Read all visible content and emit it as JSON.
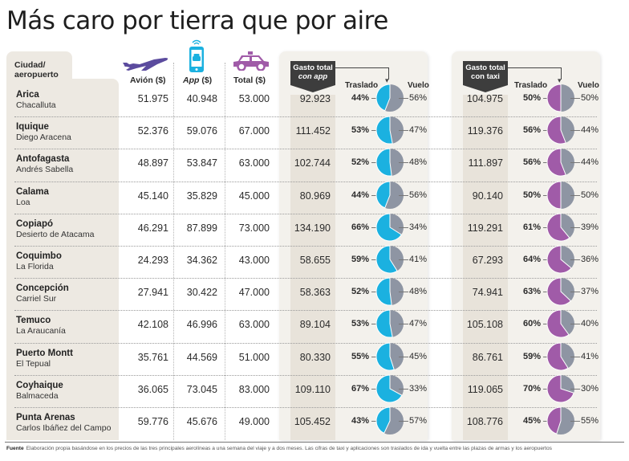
{
  "title": "Más caro por tierra que por aire",
  "headers": {
    "city": "Ciudad/",
    "city2": "aeropuerto",
    "avion": "Avión ($)",
    "app_italic": "App",
    "app_rest": " ($)",
    "total": "Total ($)",
    "gasto_app_1": "Gasto total",
    "gasto_app_2": "con app",
    "gasto_taxi_1": "Gasto total",
    "gasto_taxi_2": "con taxi",
    "traslado": "Traslado",
    "vuelo": "Vuelo"
  },
  "icons": {
    "avion": "airplane-icon",
    "app": "smartphone-car-icon",
    "total": "taxi-icon"
  },
  "colors": {
    "app_pie": "#1bb1e0",
    "taxi_pie": "#a05ba8",
    "vuelo_pie": "#8e95a3",
    "plane": "#5b4b9e",
    "taxi_icon": "#a05ba8",
    "phone": "#1bb1e0"
  },
  "chart_data": {
    "type": "table",
    "title": "Más caro por tierra que por aire",
    "columns": [
      "Ciudad",
      "Aeropuerto",
      "Avión ($)",
      "App ($)",
      "Total ($)",
      "Gasto total con app",
      "Traslado app %",
      "Vuelo app %",
      "Gasto total con taxi",
      "Traslado taxi %",
      "Vuelo taxi %"
    ],
    "rows": [
      {
        "city": "Arica",
        "airport": "Chacalluta",
        "avion": "51.975",
        "app": "40.948",
        "total": "53.000",
        "gasto_app": "92.923",
        "app_traslado": 44,
        "app_vuelo": 56,
        "gasto_taxi": "104.975",
        "taxi_traslado": 50,
        "taxi_vuelo": 50
      },
      {
        "city": "Iquique",
        "airport": "Diego Aracena",
        "avion": "52.376",
        "app": "59.076",
        "total": "67.000",
        "gasto_app": "111.452",
        "app_traslado": 53,
        "app_vuelo": 47,
        "gasto_taxi": "119.376",
        "taxi_traslado": 56,
        "taxi_vuelo": 44
      },
      {
        "city": "Antofagasta",
        "airport": "Andrés Sabella",
        "avion": "48.897",
        "app": "53.847",
        "total": "63.000",
        "gasto_app": "102.744",
        "app_traslado": 52,
        "app_vuelo": 48,
        "gasto_taxi": "111.897",
        "taxi_traslado": 56,
        "taxi_vuelo": 44
      },
      {
        "city": "Calama",
        "airport": "Loa",
        "avion": "45.140",
        "app": "35.829",
        "total": "45.000",
        "gasto_app": "80.969",
        "app_traslado": 44,
        "app_vuelo": 56,
        "gasto_taxi": "90.140",
        "taxi_traslado": 50,
        "taxi_vuelo": 50
      },
      {
        "city": "Copiapó",
        "airport": "Desierto de Atacama",
        "avion": "46.291",
        "app": "87.899",
        "total": "73.000",
        "gasto_app": "134.190",
        "app_traslado": 66,
        "app_vuelo": 34,
        "gasto_taxi": "119.291",
        "taxi_traslado": 61,
        "taxi_vuelo": 39
      },
      {
        "city": "Coquimbo",
        "airport": "La Florida",
        "avion": "24.293",
        "app": "34.362",
        "total": "43.000",
        "gasto_app": "58.655",
        "app_traslado": 59,
        "app_vuelo": 41,
        "gasto_taxi": "67.293",
        "taxi_traslado": 64,
        "taxi_vuelo": 36
      },
      {
        "city": "Concepción",
        "airport": "Carriel Sur",
        "avion": "27.941",
        "app": "30.422",
        "total": "47.000",
        "gasto_app": "58.363",
        "app_traslado": 52,
        "app_vuelo": 48,
        "gasto_taxi": "74.941",
        "taxi_traslado": 63,
        "taxi_vuelo": 37
      },
      {
        "city": "Temuco",
        "airport": "La Araucanía",
        "avion": "42.108",
        "app": "46.996",
        "total": "63.000",
        "gasto_app": "89.104",
        "app_traslado": 53,
        "app_vuelo": 47,
        "gasto_taxi": "105.108",
        "taxi_traslado": 60,
        "taxi_vuelo": 40
      },
      {
        "city": "Puerto Montt",
        "airport": "El Tepual",
        "avion": "35.761",
        "app": "44.569",
        "total": "51.000",
        "gasto_app": "80.330",
        "app_traslado": 55,
        "app_vuelo": 45,
        "gasto_taxi": "86.761",
        "taxi_traslado": 59,
        "taxi_vuelo": 41
      },
      {
        "city": "Coyhaique",
        "airport": "Balmaceda",
        "avion": "36.065",
        "app": "73.045",
        "total": "83.000",
        "gasto_app": "109.110",
        "app_traslado": 67,
        "app_vuelo": 33,
        "gasto_taxi": "119.065",
        "taxi_traslado": 70,
        "taxi_vuelo": 30
      },
      {
        "city": "Punta Arenas",
        "airport": "Carlos Ibáñez del Campo",
        "avion": "59.776",
        "app": "45.676",
        "total": "49.000",
        "gasto_app": "105.452",
        "app_traslado": 43,
        "app_vuelo": 57,
        "gasto_taxi": "108.776",
        "taxi_traslado": 45,
        "taxi_vuelo": 55
      }
    ]
  },
  "footer": {
    "label": "Fuente",
    "text": "Elaboración propia basándose en los precios de las tres principales aerolíneas a una semana del viaje y a dos meses. Las cifras de taxi y aplicaciones son traslados de ida y vuelta entre las plazas de armas y los aeropuertos"
  }
}
